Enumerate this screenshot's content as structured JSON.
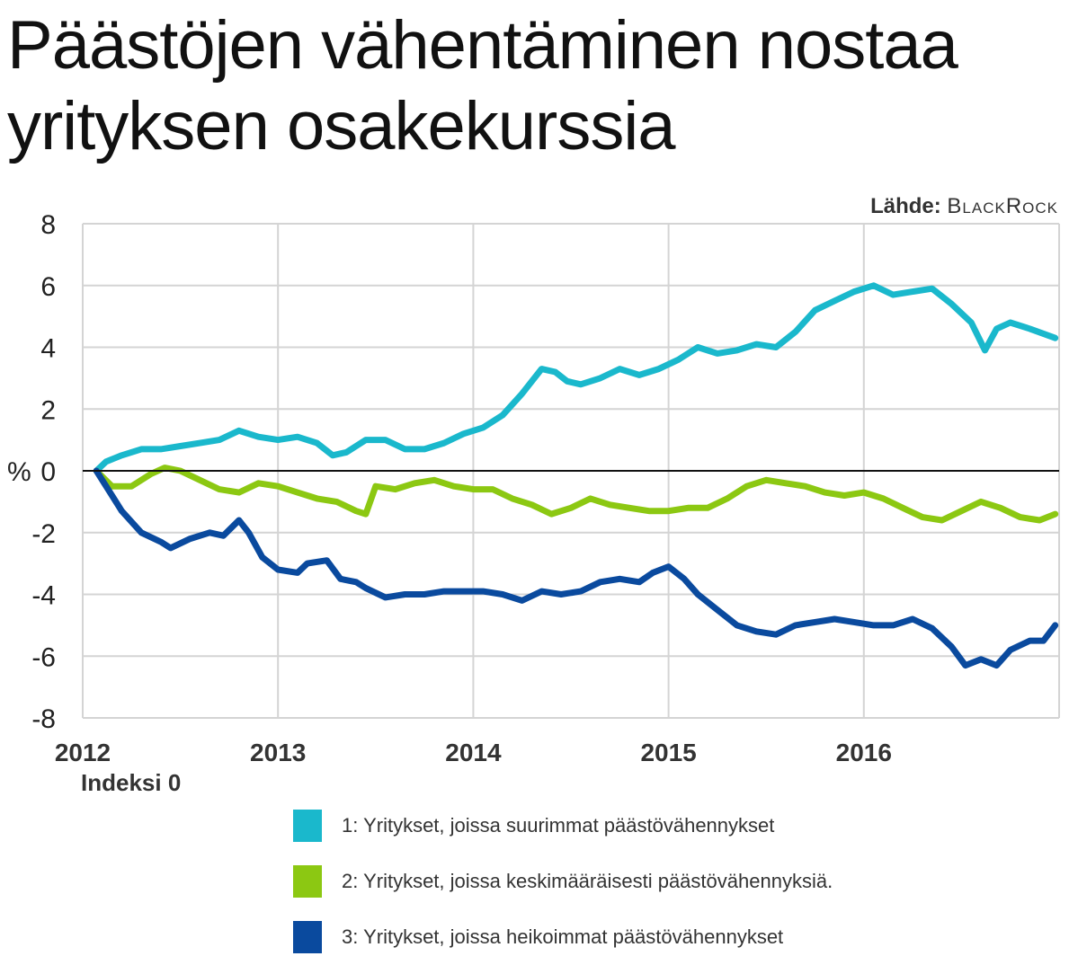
{
  "title": "Päästöjen vähentäminen nostaa yrityksen osakekurssia",
  "source": {
    "label": "Lähde:",
    "name": "BlackRock"
  },
  "index_note": "Indeksi 0",
  "chart_data": {
    "type": "line",
    "title": "Päästöjen vähentäminen nostaa yrityksen osakekurssia",
    "ylabel": "%",
    "ylim": [
      -8,
      8
    ],
    "xlim": [
      2012,
      2017
    ],
    "yticks": [
      8,
      6,
      4,
      2,
      0,
      -2,
      -4,
      -6,
      -8
    ],
    "ytick_labels": [
      "8",
      "6",
      "4",
      "2",
      "0",
      "-2",
      "-4",
      "-6",
      "-8"
    ],
    "xticks": [
      2012,
      2013,
      2014,
      2015,
      2016
    ],
    "xtick_labels": [
      "2012",
      "2013",
      "2014",
      "2015",
      "2016"
    ],
    "grid": true,
    "zero_line": true,
    "series": [
      {
        "name": "1: Yritykset, joissa suurimmat päästövähennykset",
        "color": "#1ab8cc",
        "x": [
          2012.07,
          2012.12,
          2012.2,
          2012.3,
          2012.4,
          2012.5,
          2012.6,
          2012.7,
          2012.8,
          2012.9,
          2013.0,
          2013.1,
          2013.2,
          2013.28,
          2013.35,
          2013.45,
          2013.55,
          2013.65,
          2013.75,
          2013.85,
          2013.95,
          2014.05,
          2014.15,
          2014.25,
          2014.35,
          2014.42,
          2014.48,
          2014.55,
          2014.65,
          2014.75,
          2014.85,
          2014.95,
          2015.05,
          2015.15,
          2015.25,
          2015.35,
          2015.45,
          2015.55,
          2015.65,
          2015.75,
          2015.85,
          2015.95,
          2016.05,
          2016.15,
          2016.25,
          2016.35,
          2016.45,
          2016.55,
          2016.62,
          2016.68,
          2016.75,
          2016.85,
          2016.98
        ],
        "y": [
          0.0,
          0.3,
          0.5,
          0.7,
          0.7,
          0.8,
          0.9,
          1.0,
          1.3,
          1.1,
          1.0,
          1.1,
          0.9,
          0.5,
          0.6,
          1.0,
          1.0,
          0.7,
          0.7,
          0.9,
          1.2,
          1.4,
          1.8,
          2.5,
          3.3,
          3.2,
          2.9,
          2.8,
          3.0,
          3.3,
          3.1,
          3.3,
          3.6,
          4.0,
          3.8,
          3.9,
          4.1,
          4.0,
          4.5,
          5.2,
          5.5,
          5.8,
          6.0,
          5.7,
          5.8,
          5.9,
          5.4,
          4.8,
          3.9,
          4.6,
          4.8,
          4.6,
          4.3
        ]
      },
      {
        "name": "2: Yritykset, joissa keskimääräisesti päästövähennyksiä.",
        "color": "#8cc812",
        "x": [
          2012.07,
          2012.15,
          2012.25,
          2012.35,
          2012.42,
          2012.5,
          2012.6,
          2012.7,
          2012.8,
          2012.9,
          2013.0,
          2013.1,
          2013.2,
          2013.3,
          2013.4,
          2013.45,
          2013.5,
          2013.6,
          2013.7,
          2013.8,
          2013.9,
          2014.0,
          2014.1,
          2014.2,
          2014.3,
          2014.4,
          2014.5,
          2014.6,
          2014.7,
          2014.8,
          2014.9,
          2015.0,
          2015.1,
          2015.2,
          2015.3,
          2015.4,
          2015.5,
          2015.6,
          2015.7,
          2015.8,
          2015.9,
          2016.0,
          2016.1,
          2016.2,
          2016.3,
          2016.4,
          2016.5,
          2016.6,
          2016.7,
          2016.8,
          2016.9,
          2016.98
        ],
        "y": [
          0.0,
          -0.5,
          -0.5,
          -0.1,
          0.1,
          0.0,
          -0.3,
          -0.6,
          -0.7,
          -0.4,
          -0.5,
          -0.7,
          -0.9,
          -1.0,
          -1.3,
          -1.4,
          -0.5,
          -0.6,
          -0.4,
          -0.3,
          -0.5,
          -0.6,
          -0.6,
          -0.9,
          -1.1,
          -1.4,
          -1.2,
          -0.9,
          -1.1,
          -1.2,
          -1.3,
          -1.3,
          -1.2,
          -1.2,
          -0.9,
          -0.5,
          -0.3,
          -0.4,
          -0.5,
          -0.7,
          -0.8,
          -0.7,
          -0.9,
          -1.2,
          -1.5,
          -1.6,
          -1.3,
          -1.0,
          -1.2,
          -1.5,
          -1.6,
          -1.4
        ]
      },
      {
        "name": "3: Yritykset, joissa heikoimmat päästövähennykset",
        "color": "#0a4a9e",
        "x": [
          2012.07,
          2012.12,
          2012.2,
          2012.3,
          2012.4,
          2012.45,
          2012.55,
          2012.65,
          2012.72,
          2012.8,
          2012.85,
          2012.92,
          2013.0,
          2013.1,
          2013.15,
          2013.25,
          2013.32,
          2013.4,
          2013.45,
          2013.55,
          2013.65,
          2013.75,
          2013.85,
          2013.95,
          2014.05,
          2014.15,
          2014.25,
          2014.35,
          2014.45,
          2014.55,
          2014.65,
          2014.75,
          2014.85,
          2014.92,
          2015.0,
          2015.08,
          2015.15,
          2015.25,
          2015.35,
          2015.45,
          2015.55,
          2015.65,
          2015.75,
          2015.85,
          2015.95,
          2016.05,
          2016.15,
          2016.25,
          2016.35,
          2016.45,
          2016.52,
          2016.6,
          2016.68,
          2016.75,
          2016.85,
          2016.92,
          2016.98
        ],
        "y": [
          0.0,
          -0.5,
          -1.3,
          -2.0,
          -2.3,
          -2.5,
          -2.2,
          -2.0,
          -2.1,
          -1.6,
          -2.0,
          -2.8,
          -3.2,
          -3.3,
          -3.0,
          -2.9,
          -3.5,
          -3.6,
          -3.8,
          -4.1,
          -4.0,
          -4.0,
          -3.9,
          -3.9,
          -3.9,
          -4.0,
          -4.2,
          -3.9,
          -4.0,
          -3.9,
          -3.6,
          -3.5,
          -3.6,
          -3.3,
          -3.1,
          -3.5,
          -4.0,
          -4.5,
          -5.0,
          -5.2,
          -5.3,
          -5.0,
          -4.9,
          -4.8,
          -4.9,
          -5.0,
          -5.0,
          -4.8,
          -5.1,
          -5.7,
          -6.3,
          -6.1,
          -6.3,
          -5.8,
          -5.5,
          -5.5,
          -5.0
        ]
      }
    ]
  }
}
